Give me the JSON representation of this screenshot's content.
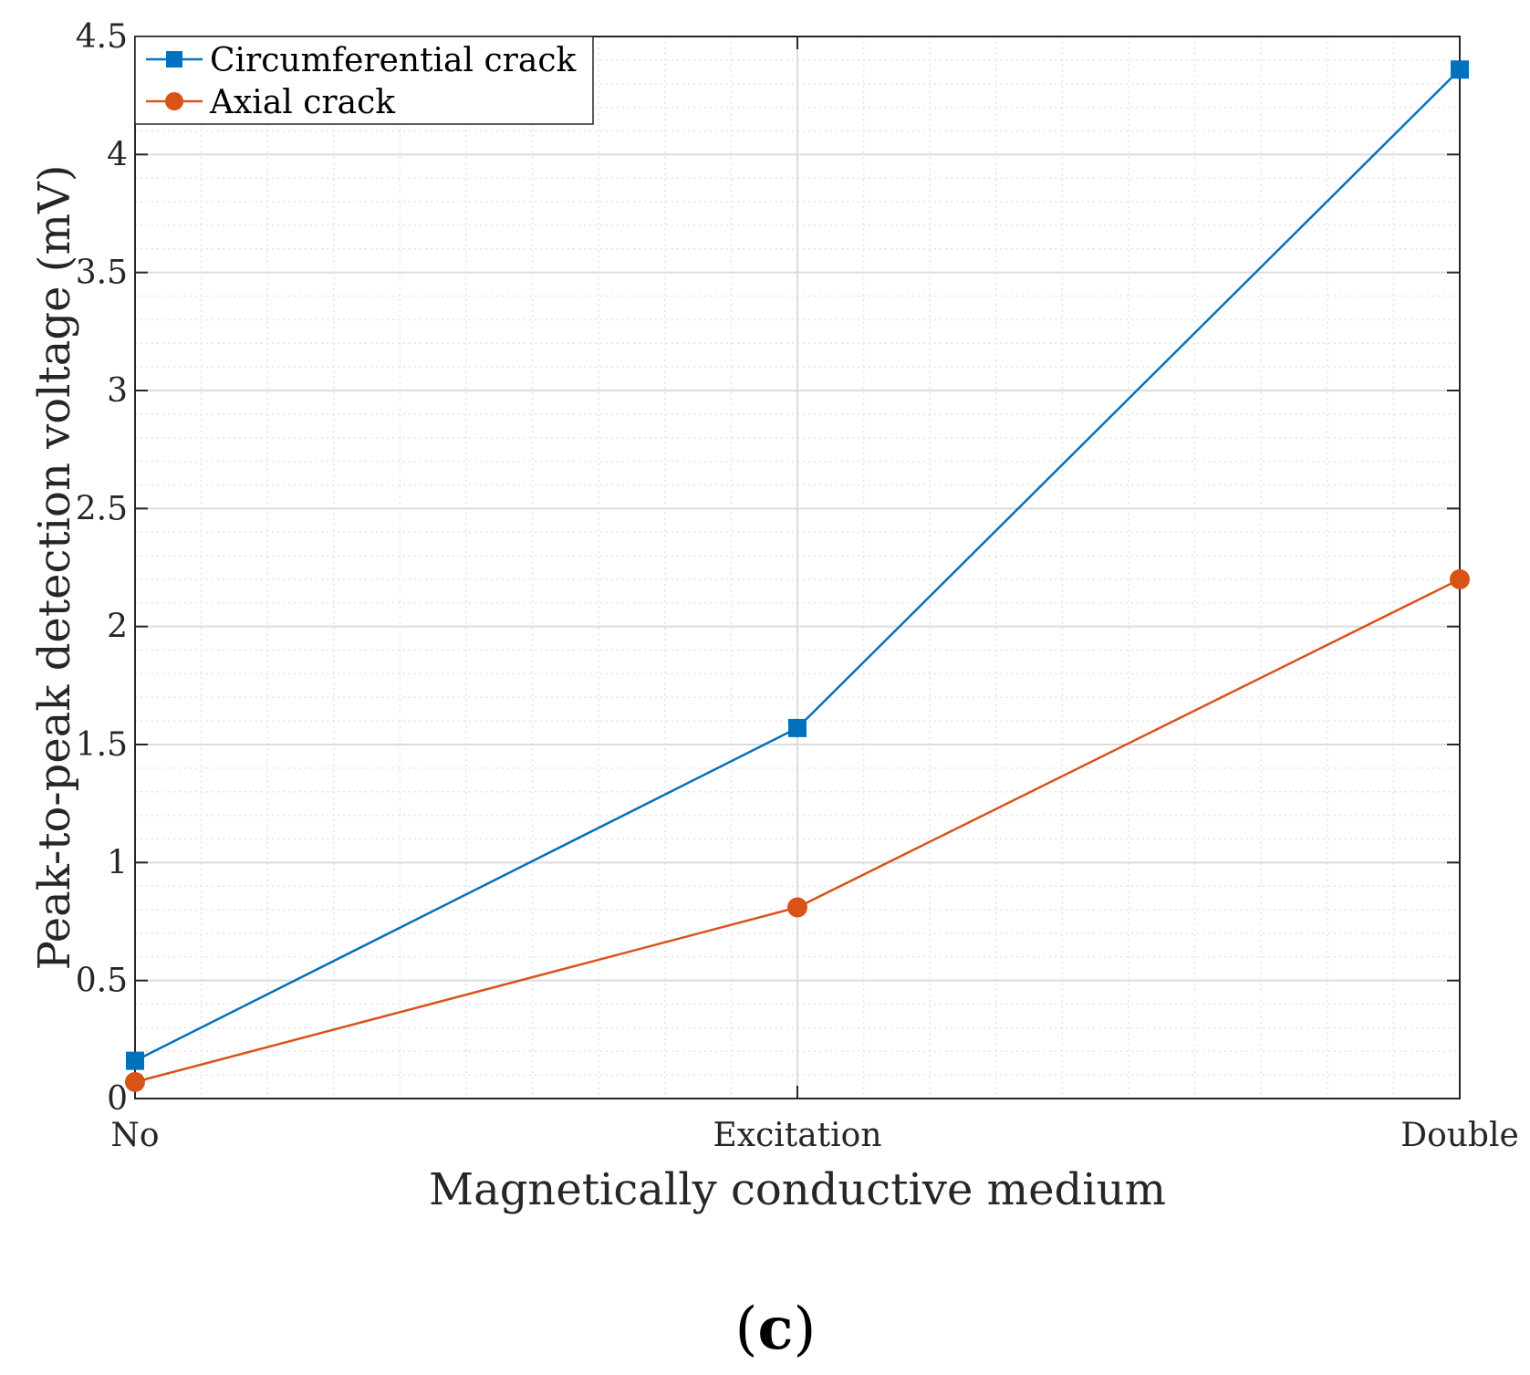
{
  "chart_data": {
    "type": "line",
    "categories": [
      "No",
      "Excitation",
      "Double"
    ],
    "series": [
      {
        "name": "Circumferential crack",
        "values": [
          0.16,
          1.57,
          4.36
        ],
        "color": "#0072BD",
        "marker": "square"
      },
      {
        "name": "Axial crack",
        "values": [
          0.07,
          0.81,
          2.2
        ],
        "color": "#D95319",
        "marker": "circle"
      }
    ],
    "xlabel": "Magnetically conductive medium",
    "ylabel": "Peak-to-peak detection voltage (mV)",
    "ylim": [
      0,
      4.5
    ],
    "yticks": [
      "0",
      "0.5",
      "1",
      "1.5",
      "2",
      "2.5",
      "3",
      "3.5",
      "4",
      "4.5"
    ],
    "grid": true,
    "minor_grid": true,
    "legend_position": "top-left"
  },
  "panel_label": {
    "open": "(",
    "letter": "c",
    "close": ")"
  }
}
